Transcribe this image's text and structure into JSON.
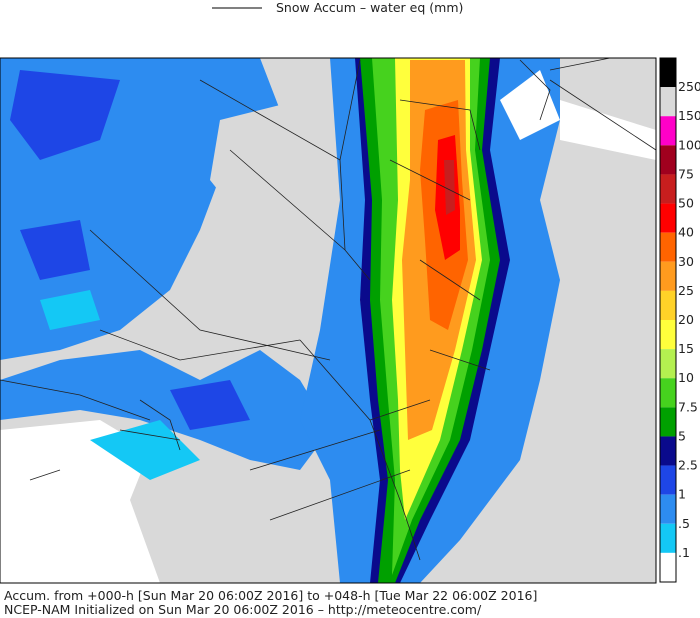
{
  "header": {
    "title": "Snow Accum – water eq (mm)"
  },
  "legend": {
    "labels": [
      "250",
      "150",
      "100",
      "75",
      "50",
      "40",
      "30",
      "25",
      "20",
      "15",
      "10",
      "7.5",
      "5",
      "2.5",
      "1",
      ".5",
      ".1"
    ],
    "colors": [
      "#000000",
      "#d9d9d9",
      "#ff00c8",
      "#a0001e",
      "#c81e1e",
      "#ff0000",
      "#ff6400",
      "#ff9b1e",
      "#ffd228",
      "#ffff3c",
      "#b4f050",
      "#46d21e",
      "#00a000",
      "#0a0a8c",
      "#1e46e6",
      "#2d8cf0",
      "#14c8f5",
      "#ffffff"
    ]
  },
  "footer": {
    "line1": "Accum. from +000-h [Sun Mar 20 06:00Z 2016] to +048-h [Tue Mar 22 06:00Z 2016]",
    "line2": "NCEP-NAM Initialized on Sun Mar 20 06:00Z 2016 – http://meteocentre.com/"
  }
}
